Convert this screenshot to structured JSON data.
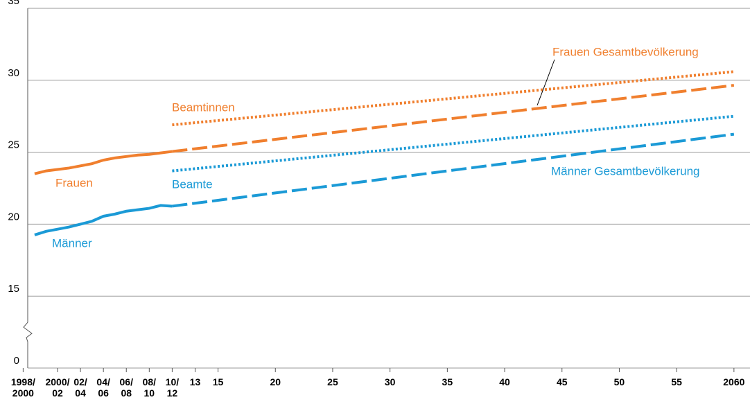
{
  "chart_data": {
    "type": "line",
    "axis_break": true,
    "grid": true,
    "xlim": [
      1998.4,
      2061.4
    ],
    "ylim": [
      0,
      35
    ],
    "yticks": [
      0,
      15,
      20,
      25,
      30,
      35
    ],
    "xticks": [
      {
        "value": 1998,
        "label": "1998/\n2000"
      },
      {
        "value": 2001,
        "label": "2000/\n02"
      },
      {
        "value": 2003,
        "label": "02/\n04"
      },
      {
        "value": 2005,
        "label": "04/\n06"
      },
      {
        "value": 2007,
        "label": "06/\n08"
      },
      {
        "value": 2009,
        "label": "08/\n10"
      },
      {
        "value": 2011,
        "label": "10/\n12"
      },
      {
        "value": 2013,
        "label": "13"
      },
      15,
      20,
      25,
      30,
      35,
      40,
      45,
      50,
      55,
      {
        "value": 2060,
        "label": "2060"
      }
    ],
    "series": [
      {
        "name": "Frauen",
        "color": "#f07f2e",
        "style": "solid",
        "x": [
          1999,
          2000,
          2001,
          2002,
          2003,
          2004,
          2005,
          2006,
          2007,
          2008,
          2009,
          2010,
          2011
        ],
        "values": [
          23.5,
          23.7,
          23.8,
          23.9,
          24.05,
          24.2,
          24.45,
          24.6,
          24.7,
          24.8,
          24.85,
          24.95,
          25.05
        ]
      },
      {
        "name": "Frauen Gesamtbevölkerung",
        "color": "#f07f2e",
        "style": "dashed",
        "x": [
          2011,
          2060
        ],
        "values": [
          25.05,
          29.65
        ]
      },
      {
        "name": "Beamtinnen",
        "color": "#f07f2e",
        "style": "dotted",
        "x": [
          2011,
          2060
        ],
        "values": [
          26.9,
          30.6
        ]
      },
      {
        "name": "Männer",
        "color": "#1b9ad6",
        "style": "solid",
        "x": [
          1999,
          2000,
          2001,
          2002,
          2003,
          2004,
          2005,
          2006,
          2007,
          2008,
          2009,
          2010,
          2011
        ],
        "values": [
          19.25,
          19.5,
          19.65,
          19.8,
          20.0,
          20.2,
          20.55,
          20.7,
          20.9,
          21.0,
          21.1,
          21.3,
          21.25
        ]
      },
      {
        "name": "Männer Gesamtbevölkerung",
        "color": "#1b9ad6",
        "style": "dashed",
        "x": [
          2011,
          2060
        ],
        "values": [
          21.25,
          26.25
        ]
      },
      {
        "name": "Beamte",
        "color": "#1b9ad6",
        "style": "dotted",
        "x": [
          2011,
          2060
        ],
        "values": [
          23.7,
          27.5
        ]
      }
    ]
  }
}
